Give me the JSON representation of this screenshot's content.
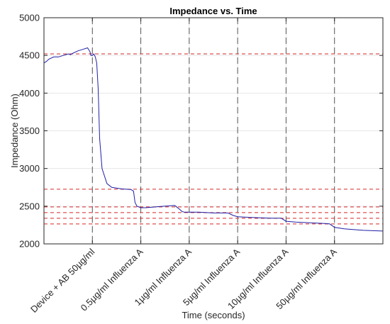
{
  "chart_data": {
    "type": "line",
    "title": "Impedance vs. Time",
    "xlabel": "Time (seconds)",
    "ylabel": "Impedance (Ohm)",
    "ylim": [
      2000,
      5000
    ],
    "xlim": [
      0,
      7
    ],
    "y_ticks": [
      2000,
      2500,
      3000,
      3500,
      4000,
      4500,
      5000
    ],
    "x_tick_positions": [
      1,
      2,
      3,
      4,
      5,
      6
    ],
    "x_tick_labels": [
      "Device + AB 50µg/ml",
      "0.5µg/ml Influenza A",
      "1µg/ml Influenza A",
      "5µg/ml Influenza A",
      "10µg/ml Influenza A",
      "50µg/ml Influenza A"
    ],
    "grid": true,
    "colors": {
      "series": "#1f1fa6",
      "reference_lines": "#d62728",
      "marker_lines": "#555555",
      "grid": "#e6e6e6",
      "axes": "#262626"
    },
    "vertical_markers": [
      1,
      2,
      3,
      4,
      5,
      6
    ],
    "horizontal_reference_lines": [
      4520,
      2725,
      2490,
      2415,
      2340,
      2265
    ],
    "series": [
      {
        "x": [
          0,
          0.05,
          0.1,
          0.2,
          0.3,
          0.4,
          0.5,
          0.55,
          0.6,
          0.7,
          0.8,
          0.9,
          0.95,
          0.97,
          1.0,
          1.03,
          1.06,
          1.09,
          1.12,
          1.15,
          1.2,
          1.3,
          1.4,
          1.6,
          1.8,
          1.85,
          1.88,
          1.92,
          1.96,
          2.0,
          2.1,
          2.3,
          2.5,
          2.7,
          2.8,
          2.85,
          2.9,
          3.0,
          3.2,
          3.5,
          3.8,
          3.9,
          4.0,
          4.3,
          4.7,
          4.9,
          5.0,
          5.2,
          5.5,
          5.8,
          5.9,
          6.0,
          6.2,
          6.6,
          7.0
        ],
        "y": [
          4400,
          4420,
          4450,
          4480,
          4480,
          4500,
          4520,
          4510,
          4530,
          4560,
          4580,
          4600,
          4550,
          4500,
          4500,
          4520,
          4480,
          4400,
          4050,
          3400,
          3000,
          2800,
          2750,
          2730,
          2720,
          2700,
          2550,
          2500,
          2490,
          2480,
          2480,
          2490,
          2500,
          2510,
          2460,
          2430,
          2420,
          2420,
          2420,
          2410,
          2410,
          2380,
          2360,
          2350,
          2340,
          2340,
          2300,
          2290,
          2280,
          2270,
          2265,
          2220,
          2200,
          2180,
          2170
        ]
      }
    ]
  }
}
